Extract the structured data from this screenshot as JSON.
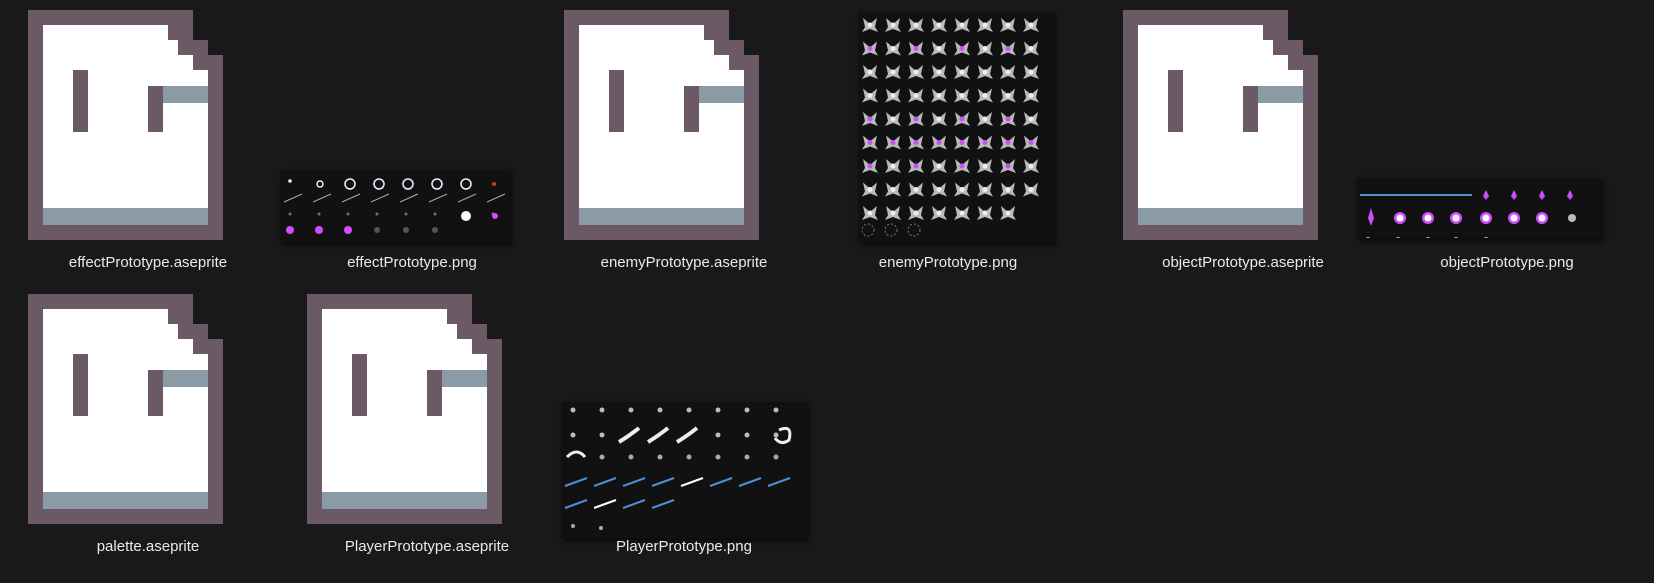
{
  "explorer": {
    "files": [
      {
        "name": "effectPrototype.aseprite",
        "kind": "aseprite",
        "icon": "aseprite-file-icon"
      },
      {
        "name": "effectPrototype.png",
        "kind": "png",
        "icon": "sprite-sheet-thumbnail"
      },
      {
        "name": "enemyPrototype.aseprite",
        "kind": "aseprite",
        "icon": "aseprite-file-icon"
      },
      {
        "name": "enemyPrototype.png",
        "kind": "png",
        "icon": "sprite-sheet-thumbnail"
      },
      {
        "name": "objectPrototype.aseprite",
        "kind": "aseprite",
        "icon": "aseprite-file-icon"
      },
      {
        "name": "objectPrototype.png",
        "kind": "png",
        "icon": "sprite-sheet-thumbnail"
      },
      {
        "name": "palette.aseprite",
        "kind": "aseprite",
        "icon": "aseprite-file-icon"
      },
      {
        "name": "PlayerPrototype.aseprite",
        "kind": "aseprite",
        "icon": "aseprite-file-icon"
      },
      {
        "name": "PlayerPrototype.png",
        "kind": "png",
        "icon": "sprite-sheet-thumbnail"
      }
    ]
  },
  "colors": {
    "background": "#191919",
    "label_text": "#eaeaea",
    "icon_frame": "#6b5a66",
    "icon_page": "#ffffff",
    "icon_strip": "#8a9ba6",
    "sprite_magenta": "#d14cff",
    "sprite_gray": "#b9b9b9",
    "sprite_blue": "#4f8fd6"
  }
}
